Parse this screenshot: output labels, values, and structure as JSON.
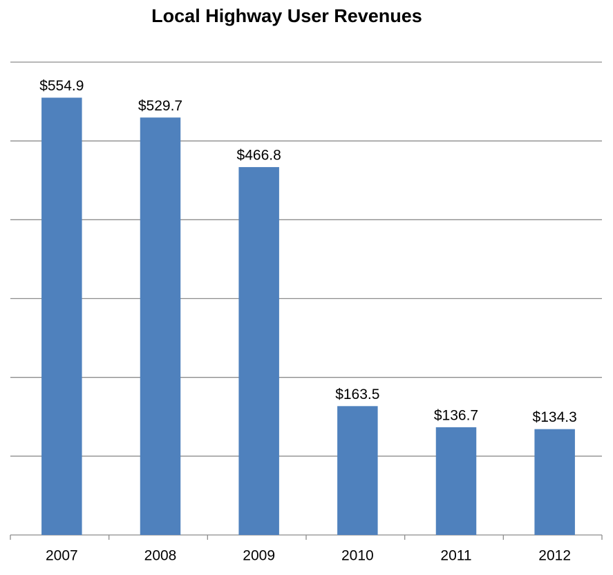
{
  "chart_data": {
    "type": "bar",
    "title": "Local Highway User Revenues",
    "categories": [
      "2007",
      "2008",
      "2009",
      "2010",
      "2011",
      "2012"
    ],
    "values": [
      554.9,
      529.7,
      466.8,
      163.5,
      136.7,
      134.3
    ],
    "value_labels": [
      "$554.9",
      "$529.7",
      "$466.8",
      "$163.5",
      "$136.7",
      "$134.3"
    ],
    "color": "#4f81bd",
    "ylim": [
      0,
      600
    ],
    "yticks": [
      0,
      100,
      200,
      300,
      400,
      500,
      600
    ],
    "grid": true
  }
}
